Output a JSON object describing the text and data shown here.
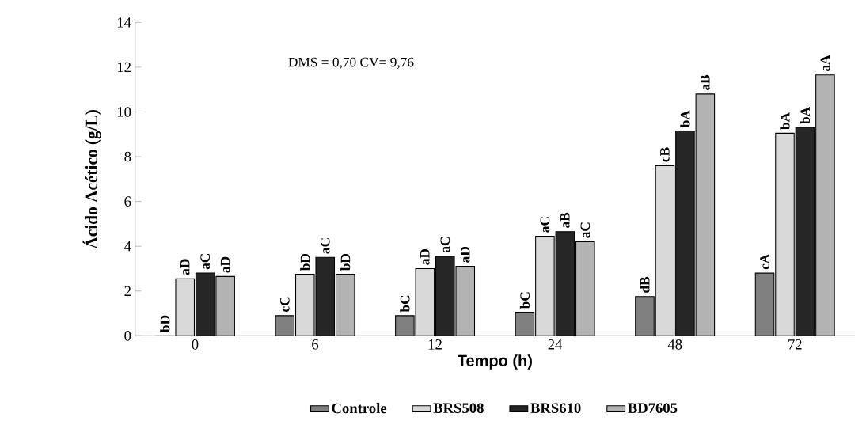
{
  "chart_data": {
    "type": "bar",
    "xlabel": "Tempo (h)",
    "ylabel": "Ácido Acético (g/L)",
    "categories": [
      "0",
      "6",
      "12",
      "24",
      "48",
      "72"
    ],
    "ylim": [
      0,
      14
    ],
    "yticks": [
      0,
      2,
      4,
      6,
      8,
      10,
      12,
      14
    ],
    "series": [
      {
        "name": "Controle",
        "color": "#808080",
        "values": [
          0,
          0.9,
          0.9,
          1.05,
          1.75,
          2.8
        ],
        "value_labels": [
          null,
          "cC",
          "bC",
          "bC",
          "dB",
          "cA"
        ]
      },
      {
        "name": "BRS508",
        "color": "#d9d9d9",
        "values": [
          2.55,
          2.75,
          3.0,
          4.45,
          7.6,
          9.05
        ],
        "value_labels": [
          "aD",
          "bD",
          "aD",
          "aC",
          "cB",
          "bA"
        ]
      },
      {
        "name": "BRS610",
        "color": "#262626",
        "values": [
          2.8,
          3.5,
          3.55,
          4.65,
          9.15,
          9.3
        ],
        "value_labels": [
          "aC",
          "aC",
          "aC",
          "aB",
          "bA",
          "bA"
        ]
      },
      {
        "name": "BD7605",
        "color": "#b3b3b3",
        "values": [
          2.65,
          2.75,
          3.1,
          4.2,
          10.8,
          11.65
        ],
        "value_labels": [
          "aD",
          "bD",
          "aD",
          "aC",
          "aB",
          "aA"
        ]
      }
    ],
    "annotations": [
      "DMS = 0,70   CV= 9,76",
      {
        "text": "bD",
        "x": "0",
        "y": 0
      }
    ],
    "legend": "bottom",
    "grid": false
  }
}
